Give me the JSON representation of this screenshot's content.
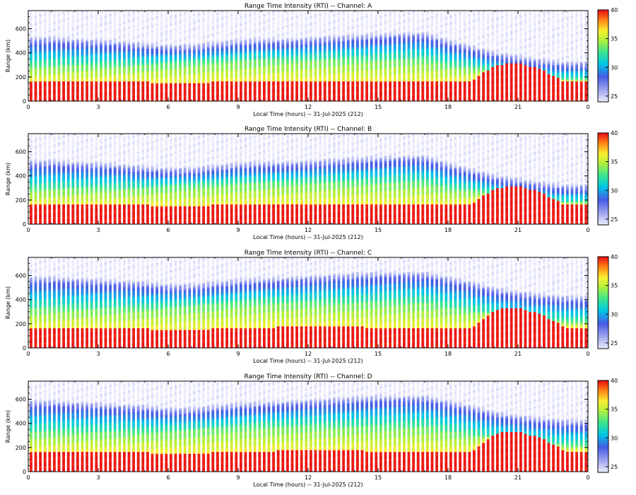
{
  "figure": {
    "xlabel": "Local Time (hours) -- 31-Jul-2025 (212)",
    "ylabel": "Range (km)"
  },
  "chart_data": [
    {
      "type": "heatmap",
      "title": "Range Time Intensity (RTI) -- Channel: A",
      "channel": "A",
      "xlabel": "Local Time (hours) -- 31-Jul-2025 (212)",
      "ylabel": "Range (km)",
      "x_ticks": [
        "0",
        "3",
        "6",
        "9",
        "12",
        "15",
        "18",
        "21",
        "0"
      ],
      "y_ticks": [
        "0",
        "200",
        "400",
        "600"
      ],
      "xlim": [
        0,
        24
      ],
      "ylim": [
        0,
        750
      ],
      "colorbar": {
        "ticks": [
          "40",
          "35",
          "30",
          "25"
        ],
        "range": [
          24,
          40
        ]
      },
      "base_layer_top_km": [
        160,
        160,
        160,
        160,
        160,
        160,
        150,
        150,
        160,
        160,
        170,
        170,
        170,
        170,
        170,
        165,
        160,
        160,
        160,
        170,
        300,
        320,
        260,
        160,
        160
      ],
      "lower_band_km": [
        300,
        300,
        300,
        300,
        300,
        300,
        310,
        320,
        330,
        340,
        340,
        340,
        350,
        350,
        350,
        350,
        350,
        350,
        300,
        280,
        250,
        230,
        200,
        180,
        180
      ],
      "upper_band_km": [
        480,
        480,
        470,
        460,
        450,
        430,
        420,
        420,
        440,
        460,
        470,
        470,
        480,
        490,
        500,
        510,
        520,
        520,
        460,
        410,
        360,
        330,
        300,
        280,
        280
      ]
    },
    {
      "type": "heatmap",
      "title": "Range Time Intensity (RTI) -- Channel: B",
      "channel": "B",
      "xlabel": "Local Time (hours) -- 31-Jul-2025 (212)",
      "ylabel": "Range (km)",
      "x_ticks": [
        "0",
        "3",
        "6",
        "9",
        "12",
        "15",
        "18",
        "21",
        "0"
      ],
      "y_ticks": [
        "0",
        "200",
        "400",
        "600"
      ],
      "xlim": [
        0,
        24
      ],
      "ylim": [
        0,
        750
      ],
      "colorbar": {
        "ticks": [
          "40",
          "35",
          "30",
          "25"
        ],
        "range": [
          24,
          40
        ]
      },
      "base_layer_top_km": [
        160,
        160,
        160,
        160,
        160,
        160,
        150,
        150,
        160,
        160,
        170,
        170,
        170,
        170,
        170,
        165,
        160,
        160,
        160,
        170,
        300,
        320,
        260,
        160,
        160
      ],
      "lower_band_km": [
        300,
        300,
        300,
        300,
        300,
        300,
        310,
        320,
        330,
        340,
        340,
        340,
        350,
        350,
        350,
        350,
        350,
        350,
        300,
        280,
        250,
        230,
        200,
        180,
        180
      ],
      "upper_band_km": [
        480,
        480,
        470,
        460,
        450,
        430,
        420,
        420,
        440,
        460,
        470,
        470,
        480,
        490,
        500,
        510,
        520,
        520,
        460,
        410,
        360,
        330,
        300,
        280,
        280
      ]
    },
    {
      "type": "heatmap",
      "title": "Range Time Intensity (RTI) -- Channel: C",
      "channel": "C",
      "xlabel": "Local Time (hours) -- 31-Jul-2025 (212)",
      "ylabel": "Range (km)",
      "x_ticks": [
        "0",
        "3",
        "6",
        "9",
        "12",
        "15",
        "18",
        "21",
        "0"
      ],
      "y_ticks": [
        "0",
        "200",
        "400",
        "600"
      ],
      "xlim": [
        0,
        24
      ],
      "ylim": [
        0,
        750
      ],
      "colorbar": {
        "ticks": [
          "40",
          "35",
          "30",
          "25"
        ],
        "range": [
          24,
          40
        ]
      },
      "base_layer_top_km": [
        160,
        160,
        160,
        160,
        160,
        160,
        150,
        150,
        160,
        170,
        170,
        175,
        175,
        175,
        175,
        170,
        165,
        160,
        160,
        170,
        320,
        330,
        280,
        170,
        170
      ],
      "lower_band_km": [
        330,
        330,
        330,
        330,
        330,
        330,
        340,
        350,
        360,
        370,
        380,
        380,
        380,
        380,
        380,
        380,
        380,
        380,
        340,
        310,
        280,
        260,
        240,
        220,
        220
      ],
      "upper_band_km": [
        540,
        540,
        530,
        520,
        510,
        500,
        480,
        480,
        500,
        520,
        530,
        540,
        550,
        560,
        570,
        580,
        580,
        580,
        540,
        500,
        450,
        420,
        400,
        380,
        380
      ]
    },
    {
      "type": "heatmap",
      "title": "Range Time Intensity (RTI) -- Channel: D",
      "channel": "D",
      "xlabel": "Local Time (hours) -- 31-Jul-2025 (212)",
      "ylabel": "Range (km)",
      "x_ticks": [
        "0",
        "3",
        "6",
        "9",
        "12",
        "15",
        "18",
        "21",
        "0"
      ],
      "y_ticks": [
        "0",
        "200",
        "400",
        "600"
      ],
      "xlim": [
        0,
        24
      ],
      "ylim": [
        0,
        750
      ],
      "colorbar": {
        "ticks": [
          "40",
          "35",
          "30",
          "25"
        ],
        "range": [
          24,
          40
        ]
      },
      "base_layer_top_km": [
        160,
        160,
        160,
        160,
        160,
        160,
        150,
        150,
        160,
        170,
        170,
        175,
        175,
        175,
        175,
        170,
        165,
        160,
        160,
        170,
        320,
        330,
        280,
        170,
        170
      ],
      "lower_band_km": [
        330,
        330,
        330,
        330,
        330,
        330,
        340,
        350,
        360,
        370,
        380,
        380,
        380,
        380,
        380,
        380,
        380,
        380,
        340,
        310,
        280,
        260,
        240,
        220,
        220
      ],
      "upper_band_km": [
        540,
        540,
        530,
        520,
        510,
        500,
        480,
        480,
        500,
        520,
        530,
        540,
        550,
        560,
        570,
        580,
        580,
        580,
        540,
        500,
        450,
        420,
        400,
        380,
        380
      ]
    }
  ]
}
